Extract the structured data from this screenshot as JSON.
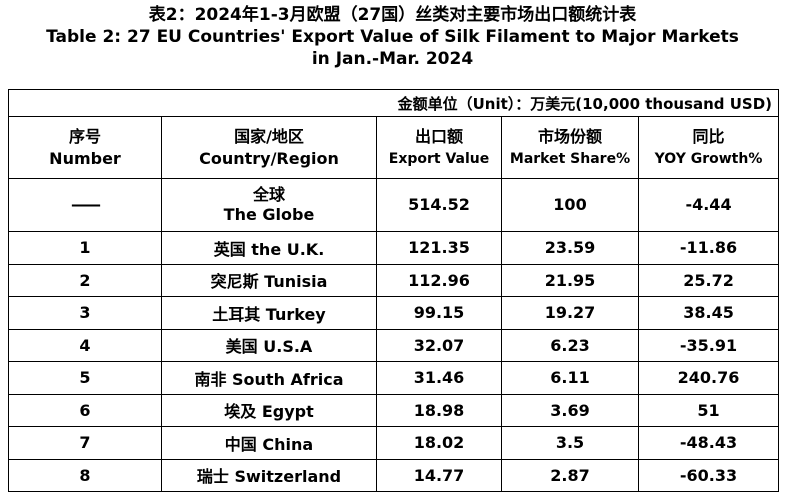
{
  "title": {
    "cn": "表2：2024年1-3月欧盟（27国）丝类对主要市场出口额统计表",
    "en_line1": "Table 2: 27 EU Countries' Export Value of Silk Filament to Major Markets",
    "en_line2": "in Jan.-Mar. 2024"
  },
  "unit_note": "金额单位（Unit）：万美元(10,000 thousand USD)",
  "headers": {
    "number_cn": "序号",
    "number_en": "Number",
    "country_cn": "国家/地区",
    "country_en": "Country/Region",
    "export_cn": "出口额",
    "export_en": "Export Value",
    "share_cn": "市场份额",
    "share_en": "Market Share%",
    "yoy_cn": "同比",
    "yoy_en": "YOY Growth%"
  },
  "globe": {
    "number": "——",
    "country_cn": "全球",
    "country_en": "The Globe",
    "export_value": "514.52",
    "market_share": "100",
    "yoy": "-4.44"
  },
  "rows": [
    {
      "number": "1",
      "country": "英国 the U.K.",
      "export_value": "121.35",
      "market_share": "23.59",
      "yoy": "-11.86"
    },
    {
      "number": "2",
      "country": "突尼斯 Tunisia",
      "export_value": "112.96",
      "market_share": "21.95",
      "yoy": "25.72"
    },
    {
      "number": "3",
      "country": "土耳其 Turkey",
      "export_value": "99.15",
      "market_share": "19.27",
      "yoy": "38.45"
    },
    {
      "number": "4",
      "country": "美国 U.S.A",
      "export_value": "32.07",
      "market_share": "6.23",
      "yoy": "-35.91"
    },
    {
      "number": "5",
      "country": "南非 South Africa",
      "export_value": "31.46",
      "market_share": "6.11",
      "yoy": "240.76"
    },
    {
      "number": "6",
      "country": "埃及 Egypt",
      "export_value": "18.98",
      "market_share": "3.69",
      "yoy": "51"
    },
    {
      "number": "7",
      "country": "中国 China",
      "export_value": "18.02",
      "market_share": "3.5",
      "yoy": "-48.43"
    },
    {
      "number": "8",
      "country": "瑞士 Switzerland",
      "export_value": "14.77",
      "market_share": "2.87",
      "yoy": "-60.33"
    }
  ]
}
